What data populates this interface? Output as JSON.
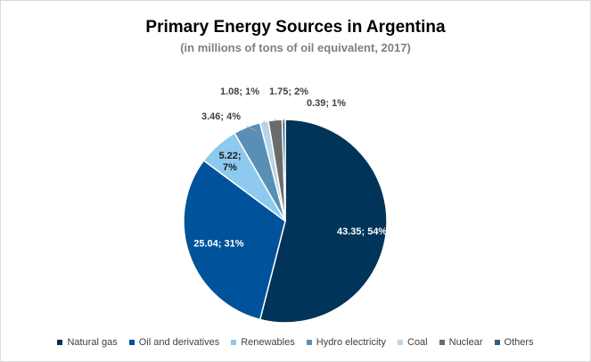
{
  "chart_data": {
    "type": "pie",
    "title": "Primary Energy Sources in Argentina",
    "subtitle": "(in millions of tons of oil equivalent, 2017)",
    "legend_position": "bottom",
    "slices": [
      {
        "name": "Natural gas",
        "value": 43.35,
        "label": "43.35; 54%",
        "color": "#003459"
      },
      {
        "name": "Oil and derivatives",
        "value": 25.04,
        "label": "25.04; 31%",
        "color": "#00529b"
      },
      {
        "name": "Renewables",
        "value": 5.22,
        "label": "5.22; 7%",
        "color": "#8ec9ef"
      },
      {
        "name": "Hydro electricity",
        "value": 3.46,
        "label": "3.46; 4%",
        "color": "#5a8fb5"
      },
      {
        "name": "Coal",
        "value": 1.08,
        "label": "1.08; 1%",
        "color": "#b8d4e8"
      },
      {
        "name": "Nuclear",
        "value": 1.75,
        "label": "1.75; 2%",
        "color": "#6b6b6b"
      },
      {
        "name": "Others",
        "value": 0.39,
        "label": "0.39; 1%",
        "color": "#2e5f8a"
      }
    ]
  }
}
